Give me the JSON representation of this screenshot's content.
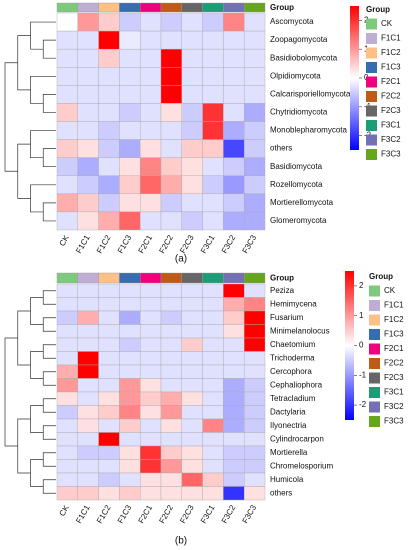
{
  "chart_data": [
    {
      "type": "heatmap",
      "label": "(a)",
      "legend_title": "Group",
      "categories": [
        "CK",
        "F1C1",
        "F1C2",
        "F1C3",
        "F2C1",
        "F2C2",
        "F2C3",
        "F3C1",
        "F3C2",
        "F3C3"
      ],
      "category_colors": [
        "#7fc97f",
        "#beaed4",
        "#fdc086",
        "#386cb0",
        "#f0027f",
        "#bf5b17",
        "#666666",
        "#1b9e77",
        "#7570b3",
        "#66a61e"
      ],
      "rows": [
        "Ascomycota",
        "Zoopagomycota",
        "Basidiobolomycota",
        "Olpidiomycota",
        "Calcarisporiellomycota",
        "Chytridiomycota",
        "Monoblepharomycota",
        "others",
        "Basidiomycota",
        "Rozellomycota",
        "Mortierellomycota",
        "Glomeromycota"
      ],
      "values": [
        [
          0,
          1,
          0.5,
          -0.5,
          -0.3,
          -0.5,
          -0.3,
          -0.5,
          1.2,
          -0.3
        ],
        [
          -0.3,
          -0.3,
          2.5,
          -0.2,
          -0.3,
          -0.3,
          -0.3,
          -0.3,
          -0.3,
          -0.3
        ],
        [
          -0.3,
          -0.3,
          0.5,
          -0.3,
          -0.3,
          2.5,
          -0.3,
          -0.3,
          -0.3,
          -0.3
        ],
        [
          -0.3,
          -0.3,
          -0.3,
          -0.3,
          -0.3,
          2.5,
          -0.3,
          -0.3,
          -0.3,
          -0.3
        ],
        [
          -0.3,
          -0.3,
          -0.3,
          -0.3,
          -0.3,
          2.5,
          -0.3,
          -0.3,
          -0.3,
          -0.3
        ],
        [
          0.5,
          -0.3,
          -0.3,
          -0.5,
          -0.3,
          0.3,
          -0.5,
          2,
          -0.3,
          -0.8
        ],
        [
          -0.3,
          -0.3,
          -0.5,
          -0.3,
          -0.3,
          -0.3,
          -0.5,
          2,
          -0.8,
          -0.5
        ],
        [
          0.5,
          0.3,
          -0.5,
          -0.8,
          0.3,
          -0.3,
          0.5,
          0.5,
          -1.8,
          -0.5
        ],
        [
          -0.5,
          -0.8,
          -0.3,
          0.3,
          1.2,
          0.5,
          0.3,
          -0.3,
          -0.5,
          -0.8
        ],
        [
          -0.3,
          -0.5,
          -0.8,
          0.5,
          1.5,
          0.8,
          0.3,
          -0.5,
          -1,
          -0.5
        ],
        [
          0.8,
          0.5,
          -0.5,
          0.3,
          0.3,
          -0.5,
          -0.3,
          -0.3,
          -0.5,
          -0.8
        ],
        [
          -0.3,
          0.3,
          0.8,
          1.5,
          -0.3,
          -0.3,
          -0.5,
          -0.3,
          -0.8,
          -0.8
        ]
      ],
      "zlim": [
        -2.5,
        2.5
      ],
      "zticks": [
        2,
        1,
        0,
        -1,
        -2
      ],
      "colorscale": [
        "#0000ff",
        "#ffffff",
        "#ff0000"
      ]
    },
    {
      "type": "heatmap",
      "label": "(b)",
      "legend_title": "Group",
      "categories": [
        "CK",
        "F1C1",
        "F1C2",
        "F1C3",
        "F2C1",
        "F2C2",
        "F2C3",
        "F3C1",
        "F3C2",
        "F3C3"
      ],
      "category_colors": [
        "#7fc97f",
        "#beaed4",
        "#fdc086",
        "#386cb0",
        "#f0027f",
        "#bf5b17",
        "#666666",
        "#1b9e77",
        "#7570b3",
        "#66a61e"
      ],
      "rows": [
        "Peziza",
        "Hemimycena",
        "Fusarium",
        "Minimelanolocus",
        "Chaetomium",
        "Trichoderma",
        "Cercophora",
        "Cephaliophora",
        "Tetracladium",
        "Dactylaria",
        "Ilyonectria",
        "Cylindrocarpon",
        "Mortierella",
        "Chromelosporium",
        "Humicola",
        "others"
      ],
      "values": [
        [
          -0.3,
          -0.3,
          -0.3,
          -0.3,
          -0.3,
          -0.3,
          -0.3,
          -0.3,
          2.5,
          -0.3
        ],
        [
          -0.3,
          -0.3,
          -0.3,
          -0.3,
          -0.3,
          -0.3,
          -0.3,
          -0.3,
          0.8,
          1.2
        ],
        [
          -0.5,
          0.8,
          -0.3,
          -0.8,
          -0.3,
          -0.5,
          -0.3,
          -0.3,
          0.5,
          2.5
        ],
        [
          -0.3,
          -0.3,
          -0.3,
          -0.3,
          -0.3,
          -0.3,
          -0.3,
          -0.3,
          0.3,
          2.5
        ],
        [
          -0.3,
          -0.3,
          -0.3,
          -0.5,
          -0.3,
          -0.3,
          0.5,
          -0.3,
          -0.3,
          2.5
        ],
        [
          -0.3,
          2.5,
          -0.3,
          -0.3,
          -0.3,
          -0.3,
          -0.3,
          -0.3,
          -0.3,
          -0.3
        ],
        [
          0.8,
          2.5,
          -0.3,
          -0.3,
          -0.3,
          -0.3,
          -0.3,
          -0.3,
          -0.3,
          -0.3
        ],
        [
          1,
          -0.3,
          -0.3,
          1,
          0.3,
          -0.3,
          -0.3,
          -0.3,
          -0.8,
          -0.5
        ],
        [
          0.3,
          -0.3,
          0.3,
          1,
          0.5,
          0.8,
          0.3,
          -0.3,
          -0.8,
          -0.5
        ],
        [
          -0.5,
          0.3,
          0.5,
          1.2,
          0.3,
          1,
          -0.3,
          -0.3,
          -0.8,
          -0.5
        ],
        [
          -0.3,
          0.3,
          -0.3,
          0.5,
          -0.3,
          0.3,
          -0.3,
          1.2,
          -0.8,
          -0.5
        ],
        [
          -0.3,
          -0.3,
          2.5,
          -0.3,
          -0.3,
          -0.3,
          -0.3,
          -0.3,
          -0.3,
          -0.3
        ],
        [
          -0.3,
          -0.5,
          -0.5,
          0.3,
          2,
          0.5,
          0.3,
          -0.3,
          -0.5,
          -0.5
        ],
        [
          -0.3,
          -0.3,
          -0.3,
          0.3,
          2,
          1,
          0.3,
          -0.3,
          -0.5,
          -0.5
        ],
        [
          -0.3,
          -0.3,
          -0.5,
          -0.3,
          0.3,
          0.3,
          1.5,
          0.5,
          -0.5,
          -0.3
        ],
        [
          0.5,
          0.5,
          0.3,
          0.5,
          0.3,
          0.3,
          0.3,
          0.3,
          -2,
          0.3
        ]
      ],
      "zlim": [
        -2.5,
        2.5
      ],
      "zticks": [
        2,
        1,
        0,
        -1,
        -2
      ],
      "colorscale": [
        "#0000ff",
        "#ffffff",
        "#ff0000"
      ]
    }
  ]
}
